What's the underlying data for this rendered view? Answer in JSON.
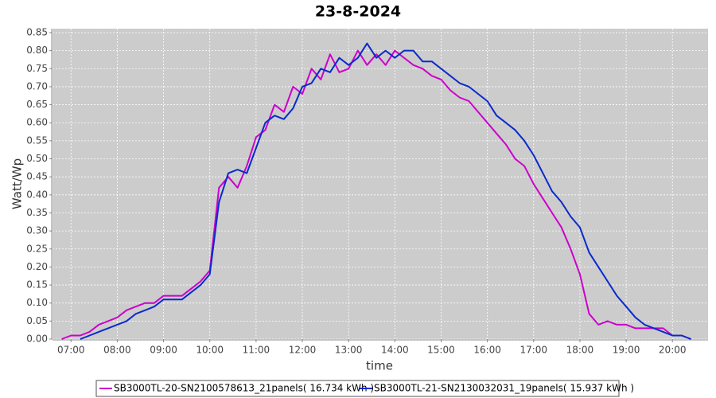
{
  "chart_data": {
    "type": "line",
    "title": "23-8-2024",
    "x_label": "time",
    "y_label": "Watt/Wp",
    "x": [
      6.8,
      7.0,
      7.2,
      7.4,
      7.6,
      7.8,
      8.0,
      8.2,
      8.4,
      8.6,
      8.8,
      9.0,
      9.2,
      9.4,
      9.6,
      9.8,
      10.0,
      10.2,
      10.4,
      10.6,
      10.8,
      11.0,
      11.2,
      11.4,
      11.6,
      11.8,
      12.0,
      12.2,
      12.4,
      12.6,
      12.8,
      13.0,
      13.2,
      13.4,
      13.6,
      13.8,
      14.0,
      14.2,
      14.4,
      14.6,
      14.8,
      15.0,
      15.2,
      15.4,
      15.6,
      15.8,
      16.0,
      16.2,
      16.4,
      16.6,
      16.8,
      17.0,
      17.2,
      17.4,
      17.6,
      17.8,
      18.0,
      18.2,
      18.4,
      18.6,
      18.8,
      19.0,
      19.2,
      19.4,
      19.6,
      19.8,
      20.0,
      20.2,
      20.4
    ],
    "series": [
      {
        "name": "SB3000TL-20-SN2100578613_21panels( 16.734 kWh )",
        "color": "#cc00cc",
        "values": [
          0,
          0.01,
          0.01,
          0.02,
          0.04,
          0.05,
          0.06,
          0.08,
          0.09,
          0.1,
          0.1,
          0.12,
          0.12,
          0.12,
          0.14,
          0.16,
          0.19,
          0.42,
          0.45,
          0.42,
          0.48,
          0.56,
          0.58,
          0.65,
          0.63,
          0.7,
          0.68,
          0.75,
          0.72,
          0.79,
          0.74,
          0.75,
          0.8,
          0.76,
          0.79,
          0.76,
          0.8,
          0.78,
          0.76,
          0.75,
          0.73,
          0.72,
          0.69,
          0.67,
          0.66,
          0.63,
          0.6,
          0.57,
          0.54,
          0.5,
          0.48,
          0.43,
          0.39,
          0.35,
          0.31,
          0.25,
          0.18,
          0.07,
          0.04,
          0.05,
          0.04,
          0.04,
          0.03,
          0.03,
          0.03,
          0.03,
          0.01,
          0.01,
          0
        ]
      },
      {
        "name": "SB3000TL-21-SN2130032031_19panels( 15.937 kWh )",
        "color": "#0a2acc",
        "values": [
          null,
          null,
          0,
          0.01,
          0.02,
          0.03,
          0.04,
          0.05,
          0.07,
          0.08,
          0.09,
          0.11,
          0.11,
          0.11,
          0.13,
          0.15,
          0.18,
          0.38,
          0.46,
          0.47,
          0.46,
          0.53,
          0.6,
          0.62,
          0.61,
          0.64,
          0.7,
          0.71,
          0.75,
          0.74,
          0.78,
          0.76,
          0.78,
          0.82,
          0.78,
          0.8,
          0.78,
          0.8,
          0.8,
          0.77,
          0.77,
          0.75,
          0.73,
          0.71,
          0.7,
          0.68,
          0.66,
          0.62,
          0.6,
          0.58,
          0.55,
          0.51,
          0.46,
          0.41,
          0.38,
          0.34,
          0.31,
          0.24,
          0.2,
          0.16,
          0.12,
          0.09,
          0.06,
          0.04,
          0.03,
          0.02,
          0.01,
          0.01,
          0
        ]
      }
    ],
    "xlim": [
      6.6,
      20.77
    ],
    "xticks": [
      {
        "value": 7,
        "label": "07:00"
      },
      {
        "value": 8,
        "label": "08:00"
      },
      {
        "value": 9,
        "label": "09:00"
      },
      {
        "value": 10,
        "label": "10:00"
      },
      {
        "value": 11,
        "label": "11:00"
      },
      {
        "value": 12,
        "label": "12:00"
      },
      {
        "value": 13,
        "label": "13:00"
      },
      {
        "value": 14,
        "label": "14:00"
      },
      {
        "value": 15,
        "label": "15:00"
      },
      {
        "value": 16,
        "label": "16:00"
      },
      {
        "value": 17,
        "label": "17:00"
      },
      {
        "value": 18,
        "label": "18:00"
      },
      {
        "value": 19,
        "label": "19:00"
      },
      {
        "value": 20,
        "label": "20:00"
      }
    ],
    "ylim": [
      0,
      0.861
    ],
    "yticks": [
      {
        "value": 0,
        "label": "0.00"
      },
      0.05,
      {
        "value": 0.1,
        "label": "0.10"
      },
      0.15,
      {
        "value": 0.2,
        "label": "0.20"
      },
      0.25,
      {
        "value": 0.3,
        "label": "0.30"
      },
      0.35,
      {
        "value": 0.4,
        "label": "0.40"
      },
      0.45,
      {
        "value": 0.5,
        "label": "0.50"
      },
      0.55,
      {
        "value": 0.6,
        "label": "0.60"
      },
      0.65,
      {
        "value": 0.7,
        "label": "0.70"
      },
      0.75,
      {
        "value": 0.8,
        "label": "0.80"
      },
      0.85
    ],
    "grid": true,
    "legend": "bottom"
  }
}
